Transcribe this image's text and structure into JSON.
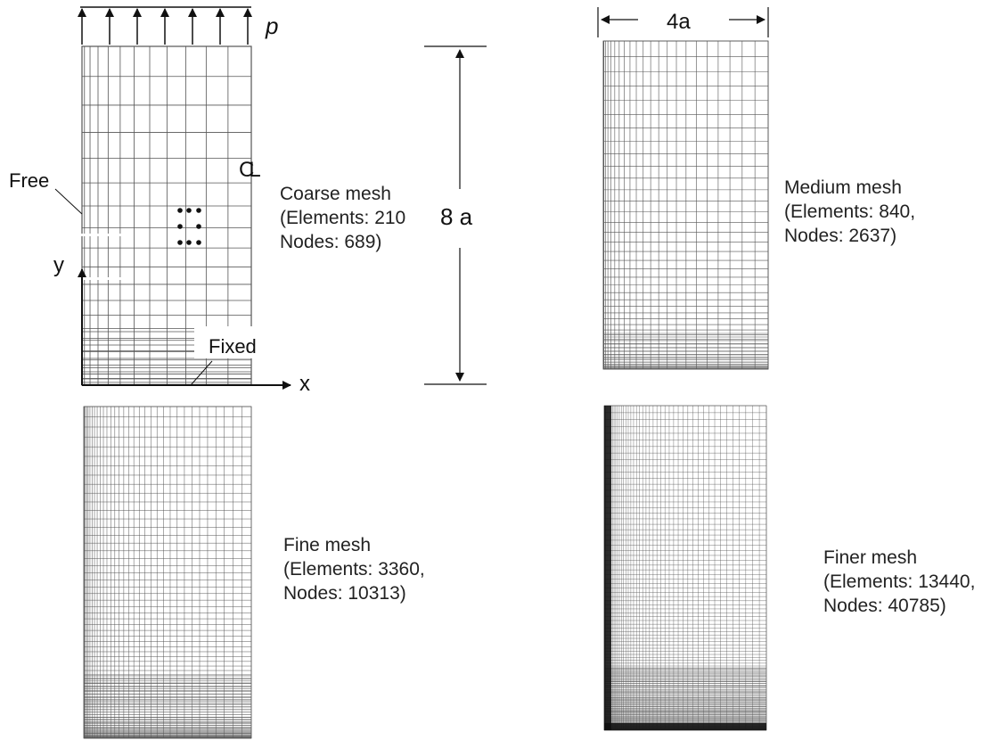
{
  "annotations": {
    "load_label": "p",
    "free_label": "Free",
    "fixed_label": "Fixed",
    "x_axis_label": "x",
    "y_axis_label": "y",
    "centerline_symbol": "CL",
    "height_dimension": "8 a",
    "width_dimension": "4a"
  },
  "meshes": {
    "coarse": {
      "title": "Coarse mesh",
      "elements": "(Elements: 210",
      "nodes": "Nodes: 689)"
    },
    "medium": {
      "title": "Medium mesh",
      "elements": "(Elements: 840,",
      "nodes": "Nodes: 2637)"
    },
    "fine": {
      "title": "Fine mesh",
      "elements": "(Elements: 3360,",
      "nodes": "Nodes: 10313)"
    },
    "finer": {
      "title": "Finer mesh",
      "elements": "(Elements: 13440,",
      "nodes": "Nodes: 40785)"
    }
  },
  "colors": {
    "line": "#111111",
    "mesh": "#555555"
  }
}
